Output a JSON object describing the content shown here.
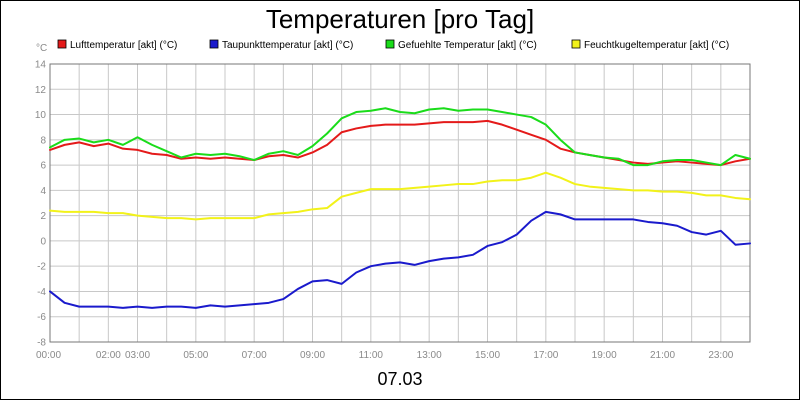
{
  "chart_data": {
    "type": "line",
    "title": "Temperaturen [pro Tag]",
    "ylabel": "°C",
    "date_label": "07.03",
    "ylim": [
      -8,
      14
    ],
    "xlim": [
      0,
      24
    ],
    "grid": true,
    "legend_position": "top",
    "y_ticks": [
      "14",
      "12",
      "10",
      "8",
      "6",
      "4",
      "2",
      "0",
      "-2",
      "-4",
      "-6",
      "-8"
    ],
    "y_tick_values": [
      14,
      12,
      10,
      8,
      6,
      4,
      2,
      0,
      -2,
      -4,
      -6,
      -8
    ],
    "x_ticks": [
      "00:00",
      "02:00",
      "03:00",
      "05:00",
      "07:00",
      "09:00",
      "11:00",
      "13:00",
      "15:00",
      "17:00",
      "19:00",
      "21:00",
      "23:00"
    ],
    "x_tick_values": [
      0,
      2,
      3,
      5,
      7,
      9,
      11,
      13,
      15,
      17,
      19,
      21,
      23
    ],
    "x": [
      0,
      0.5,
      1,
      1.5,
      2,
      2.5,
      3,
      3.5,
      4,
      4.5,
      5,
      5.5,
      6,
      6.5,
      7,
      7.5,
      8,
      8.5,
      9,
      9.5,
      10,
      10.5,
      11,
      11.5,
      12,
      12.5,
      13,
      13.5,
      14,
      14.5,
      15,
      15.5,
      16,
      16.5,
      17,
      17.5,
      18,
      18.5,
      19,
      19.5,
      20,
      20.5,
      21,
      21.5,
      22,
      22.5,
      23,
      23.5,
      24
    ],
    "series": [
      {
        "name": "Lufttemperatur [akt] (°C)",
        "color": "#e41a1a",
        "values": [
          7.2,
          7.6,
          7.8,
          7.5,
          7.7,
          7.3,
          7.2,
          6.9,
          6.8,
          6.5,
          6.6,
          6.5,
          6.6,
          6.5,
          6.4,
          6.7,
          6.8,
          6.6,
          7.0,
          7.6,
          8.6,
          8.9,
          9.1,
          9.2,
          9.2,
          9.2,
          9.3,
          9.4,
          9.4,
          9.4,
          9.5,
          9.2,
          8.8,
          8.4,
          8.0,
          7.3,
          7.0,
          6.8,
          6.6,
          6.4,
          6.2,
          6.1,
          6.2,
          6.3,
          6.2,
          6.1,
          6.0,
          6.3,
          6.5
        ]
      },
      {
        "name": "Taupunkttemperatur [akt] (°C)",
        "color": "#1a1acc",
        "values": [
          -4.0,
          -4.9,
          -5.2,
          -5.2,
          -5.2,
          -5.3,
          -5.2,
          -5.3,
          -5.2,
          -5.2,
          -5.3,
          -5.1,
          -5.2,
          -5.1,
          -5.0,
          -4.9,
          -4.6,
          -3.8,
          -3.2,
          -3.1,
          -3.4,
          -2.5,
          -2.0,
          -1.8,
          -1.7,
          -1.9,
          -1.6,
          -1.4,
          -1.3,
          -1.1,
          -0.4,
          -0.1,
          0.5,
          1.6,
          2.3,
          2.1,
          1.7,
          1.7,
          1.7,
          1.7,
          1.7,
          1.5,
          1.4,
          1.2,
          0.7,
          0.5,
          0.8,
          -0.3,
          -0.2
        ]
      },
      {
        "name": "Gefuehlte Temperatur [akt] (°C)",
        "color": "#1adc1a",
        "values": [
          7.4,
          8.0,
          8.1,
          7.8,
          8.0,
          7.6,
          8.2,
          7.6,
          7.1,
          6.6,
          6.9,
          6.8,
          6.9,
          6.7,
          6.4,
          6.9,
          7.1,
          6.8,
          7.5,
          8.5,
          9.7,
          10.2,
          10.3,
          10.5,
          10.2,
          10.1,
          10.4,
          10.5,
          10.3,
          10.4,
          10.4,
          10.2,
          10.0,
          9.8,
          9.2,
          8.0,
          7.0,
          6.8,
          6.6,
          6.5,
          6.0,
          6.0,
          6.3,
          6.4,
          6.4,
          6.2,
          6.0,
          6.8,
          6.5
        ]
      },
      {
        "name": "Feuchtkugeltemperatur [akt] (°C)",
        "color": "#f2f21a",
        "values": [
          2.4,
          2.3,
          2.3,
          2.3,
          2.2,
          2.2,
          2.0,
          1.9,
          1.8,
          1.8,
          1.7,
          1.8,
          1.8,
          1.8,
          1.8,
          2.1,
          2.2,
          2.3,
          2.5,
          2.6,
          3.5,
          3.8,
          4.1,
          4.1,
          4.1,
          4.2,
          4.3,
          4.4,
          4.5,
          4.5,
          4.7,
          4.8,
          4.8,
          5.0,
          5.4,
          5.0,
          4.5,
          4.3,
          4.2,
          4.1,
          4.0,
          4.0,
          3.9,
          3.9,
          3.8,
          3.6,
          3.6,
          3.4,
          3.3
        ]
      }
    ]
  }
}
